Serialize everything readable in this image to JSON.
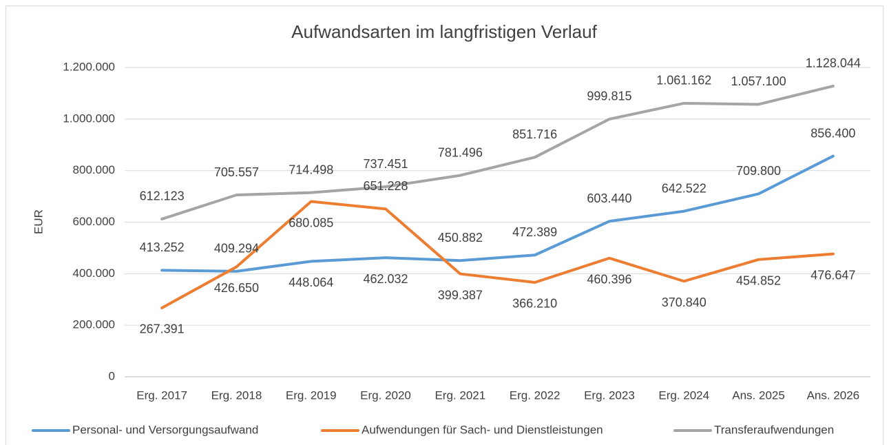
{
  "chart_data": {
    "type": "line",
    "title": "Aufwandsarten im langfristigen Verlauf",
    "y_label": "EUR",
    "categories": [
      "Erg. 2017",
      "Erg. 2018",
      "Erg. 2019",
      "Erg. 2020",
      "Erg. 2021",
      "Erg. 2022",
      "Erg. 2023",
      "Erg. 2024",
      "Ans. 2025",
      "Ans. 2026"
    ],
    "series": [
      {
        "name": "Personal- und Versorgungsaufwand",
        "color": "#5b9bd5",
        "values": [
          413252,
          409294,
          448064,
          462032,
          450882,
          472389,
          603440,
          642522,
          709800,
          856400
        ],
        "value_labels": [
          "413.252",
          "409.294",
          "448.064",
          "462.032",
          "450.882",
          "472.389",
          "603.440",
          "642.522",
          "709.800",
          "856.400"
        ]
      },
      {
        "name": "Aufwendungen für Sach- und Dienstleistungen",
        "color": "#ed7d31",
        "values": [
          267391,
          426650,
          680085,
          651228,
          399387,
          366210,
          460396,
          370840,
          454852,
          476647
        ],
        "value_labels": [
          "267.391",
          "426.650",
          "680.085",
          "651.228",
          "399.387",
          "366.210",
          "460.396",
          "370.840",
          "454.852",
          "476.647"
        ]
      },
      {
        "name": "Transferaufwendungen",
        "color": "#a5a5a5",
        "values": [
          612123,
          705557,
          714498,
          737451,
          781496,
          851716,
          999815,
          1061162,
          1057100,
          1128044
        ],
        "value_labels": [
          "612.123",
          "705.557",
          "714.498",
          "737.451",
          "781.496",
          "851.716",
          "999.815",
          "1.061.162",
          "1.057.100",
          "1.128.044"
        ]
      }
    ],
    "ylim": [
      0,
      1200000
    ],
    "yticks": [
      0,
      {
        "value": 200000,
        "label": "200.000"
      },
      {
        "value": 400000,
        "label": "400.000"
      },
      {
        "value": 600000,
        "label": "600.000"
      },
      {
        "value": 800000,
        "label": "800.000"
      },
      {
        "value": 1000000,
        "label": "1.000.000"
      },
      {
        "value": 1200000,
        "label": "1.200.000"
      }
    ],
    "grid": true,
    "legend": "bottom"
  }
}
